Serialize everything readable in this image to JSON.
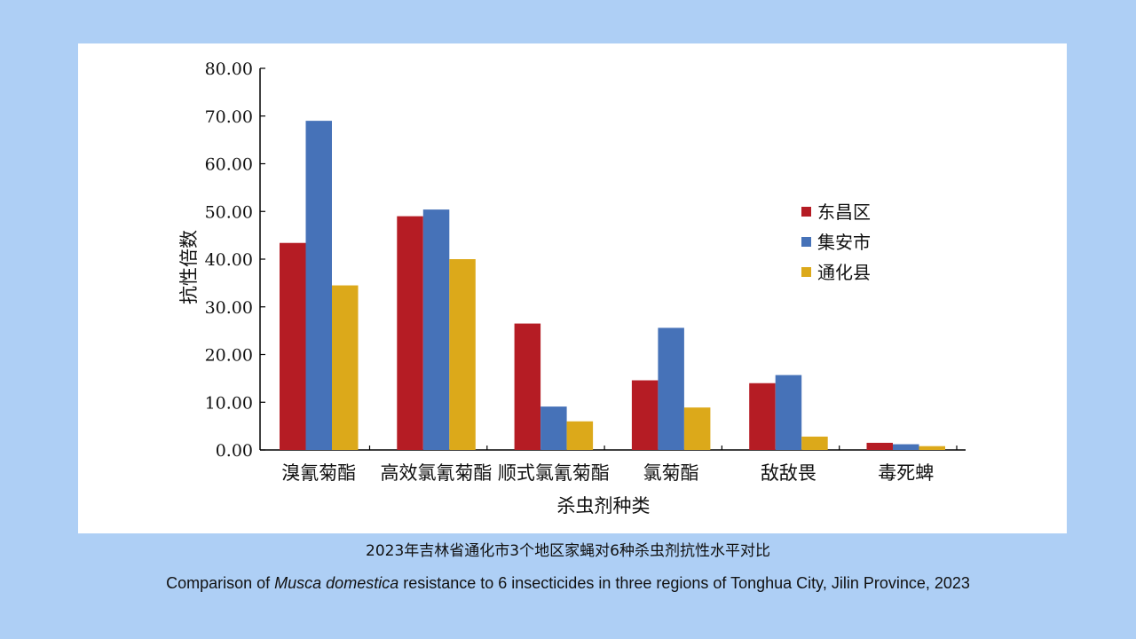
{
  "chart_data": {
    "type": "bar",
    "title": "",
    "xlabel": "杀虫剂种类",
    "ylabel": "抗性倍数",
    "ylim": [
      0,
      80
    ],
    "yticks": [
      "0.00",
      "10.00",
      "20.00",
      "30.00",
      "40.00",
      "50.00",
      "60.00",
      "70.00",
      "80.00"
    ],
    "categories": [
      "溴氰菊酯",
      "高效氯氰菊酯",
      "顺式氯氰菊酯",
      "氯菊酯",
      "敌敌畏",
      "毒死蜱"
    ],
    "series": [
      {
        "name": "东昌区",
        "color": "#b51c24",
        "values": [
          43.4,
          49.0,
          26.5,
          14.6,
          14.0,
          1.5
        ]
      },
      {
        "name": "集安市",
        "color": "#4672b8",
        "values": [
          69.0,
          50.4,
          9.1,
          25.6,
          15.7,
          1.2
        ]
      },
      {
        "name": "通化县",
        "color": "#dca91a",
        "values": [
          34.5,
          40.0,
          6.0,
          8.9,
          2.8,
          0.8
        ]
      }
    ],
    "legend": "right",
    "grid": false
  },
  "caption": {
    "cn": "2023年吉林省通化市3个地区家蝇对6种杀虫剂抗性水平对比",
    "en_before": "Comparison of ",
    "en_italic": "Musca domestica",
    "en_after": " resistance to 6 insecticides in three regions of Tonghua City, Jilin Province, 2023"
  }
}
